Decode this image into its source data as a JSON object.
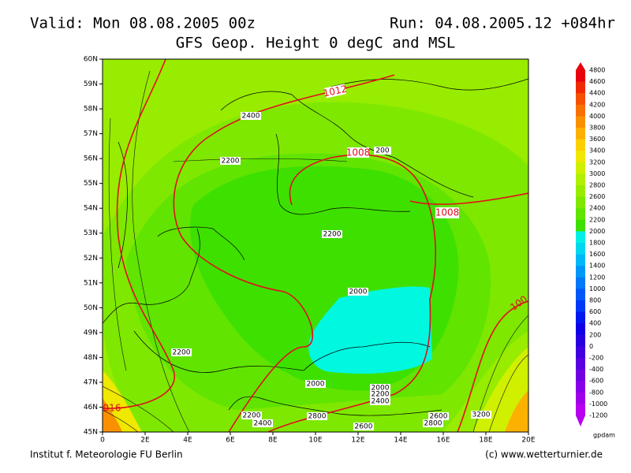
{
  "header": {
    "valid": "Valid: Mon 08.08.2005 00z",
    "run": "Run: 04.08.2005.12 +084hr",
    "title": "GFS Geop. Height 0 degC and MSL"
  },
  "footer": {
    "left": "Institut f. Meteorologie  FU Berlin",
    "right": "(c) www.wetterturnier.de"
  },
  "axes": {
    "lat_labels": [
      "45N",
      "46N",
      "47N",
      "48N",
      "49N",
      "50N",
      "51N",
      "52N",
      "53N",
      "54N",
      "55N",
      "56N",
      "57N",
      "58N",
      "59N",
      "60N"
    ],
    "lon_labels": [
      "0",
      "2E",
      "4E",
      "6E",
      "8E",
      "10E",
      "12E",
      "14E",
      "16E",
      "18E",
      "20E"
    ]
  },
  "colorbar": {
    "labels": [
      "4800",
      "4600",
      "4400",
      "4200",
      "4000",
      "3800",
      "3600",
      "3400",
      "3200",
      "3000",
      "2800",
      "2600",
      "2400",
      "2200",
      "2000",
      "1800",
      "1600",
      "1400",
      "1200",
      "1000",
      "800",
      "600",
      "400",
      "200",
      "0",
      "-200",
      "-400",
      "-600",
      "-800",
      "-1000",
      "-1200"
    ],
    "colors": [
      "#e8000c",
      "#f02a00",
      "#f55000",
      "#f87000",
      "#fa9000",
      "#fcb000",
      "#fdd000",
      "#f0e800",
      "#d0f000",
      "#b0f000",
      "#98ec00",
      "#7ee800",
      "#60e400",
      "#3ee000",
      "#00f0e8",
      "#00d8f0",
      "#00b8f8",
      "#0098f8",
      "#0078f8",
      "#0058f8",
      "#0038f8",
      "#0018f0",
      "#1000e8",
      "#2800e0",
      "#4000e0",
      "#5800e0",
      "#7000e0",
      "#8800e8",
      "#a000e8",
      "#b800f0"
    ],
    "unit": "gpdam"
  },
  "contour_labels": [
    "1012",
    "1008",
    "1008",
    "2400",
    "2200",
    "200",
    "2200",
    "2000",
    "2200",
    "2000",
    "2000",
    "2200",
    "2400",
    "2200",
    "2400",
    "2800",
    "2600",
    "2600",
    "2800",
    "3200",
    "016",
    "100"
  ]
}
